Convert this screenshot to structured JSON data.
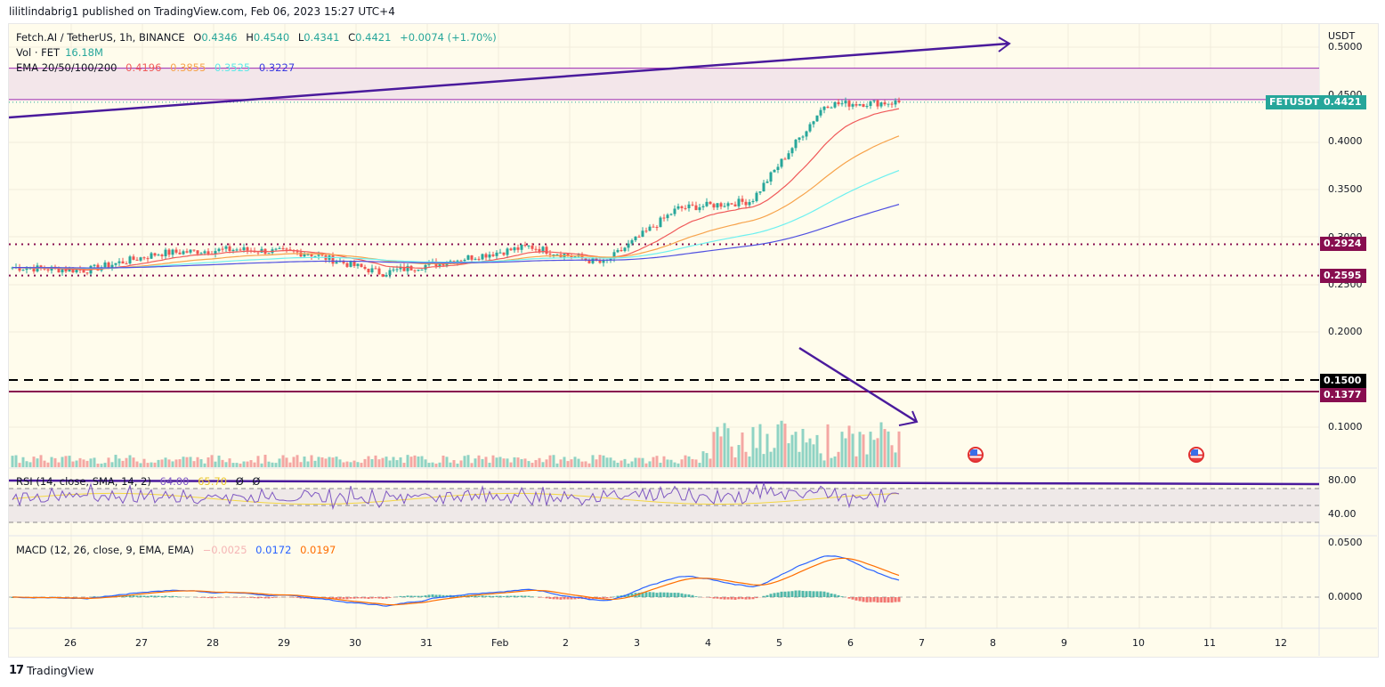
{
  "publish_line": "lilitlindabrig1 published on TradingView.com, Feb 06, 2023 15:27 UTC+4",
  "legend": {
    "symbol": "Fetch.AI / TetherUS, 1h, BINANCE",
    "open_label": "O",
    "open": "0.4346",
    "high_label": "H",
    "high": "0.4540",
    "low_label": "L",
    "low": "0.4341",
    "close_label": "C",
    "close": "0.4421",
    "change": "+0.0074 (+1.70%)",
    "vol_label": "Vol · FET",
    "vol": "16.18M",
    "ema_label": "EMA 20/50/100/200",
    "ema20": "0.4196",
    "ema50": "0.3855",
    "ema100": "0.3525",
    "ema200": "0.3227"
  },
  "rsi_legend": {
    "label": "RSI (14, close, SMA, 14, 2)",
    "rsi": "64.00",
    "sma": "65.70",
    "extra1": "Ø",
    "extra2": "Ø"
  },
  "macd_legend": {
    "label": "MACD (12, 26, close, 9, EMA, EMA)",
    "hist": "−0.0025",
    "macd": "0.0172",
    "signal": "0.0197"
  },
  "price_axis": {
    "currency": "USDT",
    "ticks": [
      "0.5000",
      "0.4500",
      "0.4000",
      "0.3500",
      "0.3000",
      "0.2500",
      "0.2000",
      "0.1000"
    ]
  },
  "rsi_axis": {
    "ticks": [
      "80.00",
      "40.00"
    ]
  },
  "macd_axis": {
    "ticks": [
      "0.0500",
      "0.0000"
    ]
  },
  "time_axis": {
    "ticks": [
      "26",
      "27",
      "28",
      "29",
      "30",
      "31",
      "Feb",
      "2",
      "3",
      "4",
      "5",
      "6",
      "7",
      "8",
      "9",
      "10",
      "11",
      "12"
    ]
  },
  "price_labels": {
    "symbol_tag": "FETUSDT",
    "last": "0.4421",
    "level1": "0.2924",
    "level2": "0.2595",
    "level3": "0.1500",
    "level4": "0.1377"
  },
  "colors": {
    "up": "#26a69a",
    "down": "#ef5350",
    "ema20": "#f05a5a",
    "ema50": "#f7a34b",
    "ema100": "#6cf0f0",
    "ema200": "#4f4fe0",
    "level": "#880e4f",
    "trend": "#4a1a9c",
    "rsi": "#7e57c2",
    "rsi_sma": "#f5d742",
    "macd": "#2962ff",
    "signal": "#ff6d00"
  },
  "footer": {
    "brand": "TradingView",
    "logo": "17"
  },
  "chart_data": {
    "type": "candlestick",
    "title": "Fetch.AI / TetherUS, 1h, BINANCE",
    "xlabel": "",
    "ylabel": "USDT",
    "ylim": [
      0.05,
      0.52
    ],
    "x_ticks": [
      "26",
      "27",
      "28",
      "29",
      "30",
      "31",
      "Feb",
      "2",
      "3",
      "4",
      "5",
      "6",
      "7",
      "8",
      "9",
      "10",
      "11",
      "12"
    ],
    "daily_close_approx": {
      "x": [
        "26",
        "27",
        "28",
        "29",
        "30",
        "31",
        "Feb",
        "2",
        "3",
        "4",
        "5",
        "6",
        "6.6"
      ],
      "close": [
        0.268,
        0.265,
        0.283,
        0.287,
        0.283,
        0.262,
        0.276,
        0.29,
        0.272,
        0.33,
        0.338,
        0.44,
        0.4421
      ]
    },
    "horizontal_levels": [
      0.2924,
      0.2595,
      0.15,
      0.1377
    ],
    "resistance_zone": [
      0.445,
      0.478
    ],
    "ema": {
      "ema20": 0.4196,
      "ema50": 0.3855,
      "ema100": 0.3525,
      "ema200": 0.3227
    },
    "last_price": 0.4421,
    "volume_last": "16.18M",
    "rsi": {
      "value": 64.0,
      "sma": 65.7,
      "bands": [
        70,
        50,
        30
      ]
    },
    "macd": {
      "hist": -0.0025,
      "macd": 0.0172,
      "signal": 0.0197
    }
  }
}
